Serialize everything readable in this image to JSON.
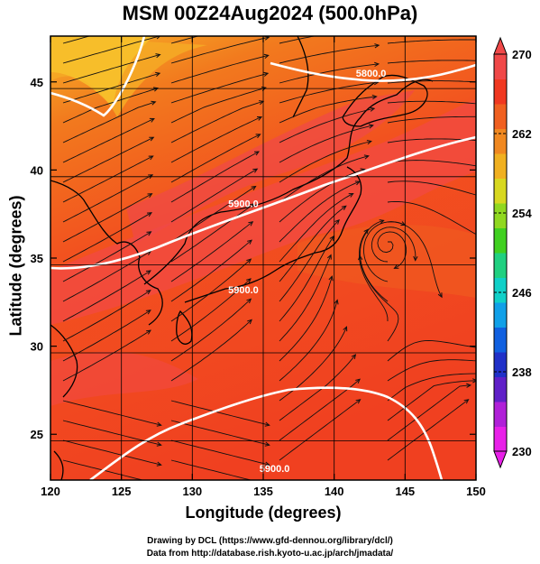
{
  "title": "MSM 00Z24Aug2024 (500.0hPa)",
  "xlabel": "Longitude (degrees)",
  "ylabel": "Latitude  (degrees)",
  "credits": [
    "Drawing by DCL (https://www.gfd-dennou.org/library/dcl/)",
    "Data from http://database.rish.kyoto-u.ac.jp/arch/jmadata/"
  ],
  "map": {
    "lon_range": [
      120,
      150
    ],
    "lat_range": [
      22.4,
      47.6
    ],
    "lon_ticks": [
      "120",
      "125",
      "130",
      "135",
      "140",
      "145",
      "150"
    ],
    "lat_ticks": [
      "25",
      "30",
      "35",
      "40",
      "45"
    ],
    "contour_labels": [
      {
        "text": "5900.0",
        "lon": 135.8,
        "lat": 22.85
      },
      {
        "text": "5900.0",
        "lon": 133.6,
        "lat": 37.9
      },
      {
        "text": "5900.0",
        "lon": 133.6,
        "lat": 33.0
      },
      {
        "text": "5800.0",
        "lon": 142.6,
        "lat": 45.3
      }
    ]
  },
  "colorbar": {
    "min": 230,
    "max": 270,
    "tick_labels": [
      "270",
      "262",
      "254",
      "246",
      "238",
      "230"
    ],
    "colors": [
      "#e820e8",
      "#b020d8",
      "#6020c8",
      "#2030c8",
      "#1060e0",
      "#10a0e8",
      "#10d0c8",
      "#20d080",
      "#40d020",
      "#90d820",
      "#d8d820",
      "#f0b020",
      "#f08820",
      "#f06020",
      "#f03820",
      "#f04848"
    ]
  },
  "colors": {
    "field_warm": "#f2561f",
    "field_hot": "#f24a44",
    "field_north": "#f5a31e",
    "contour": "#ffffff",
    "vector": "#111111"
  }
}
